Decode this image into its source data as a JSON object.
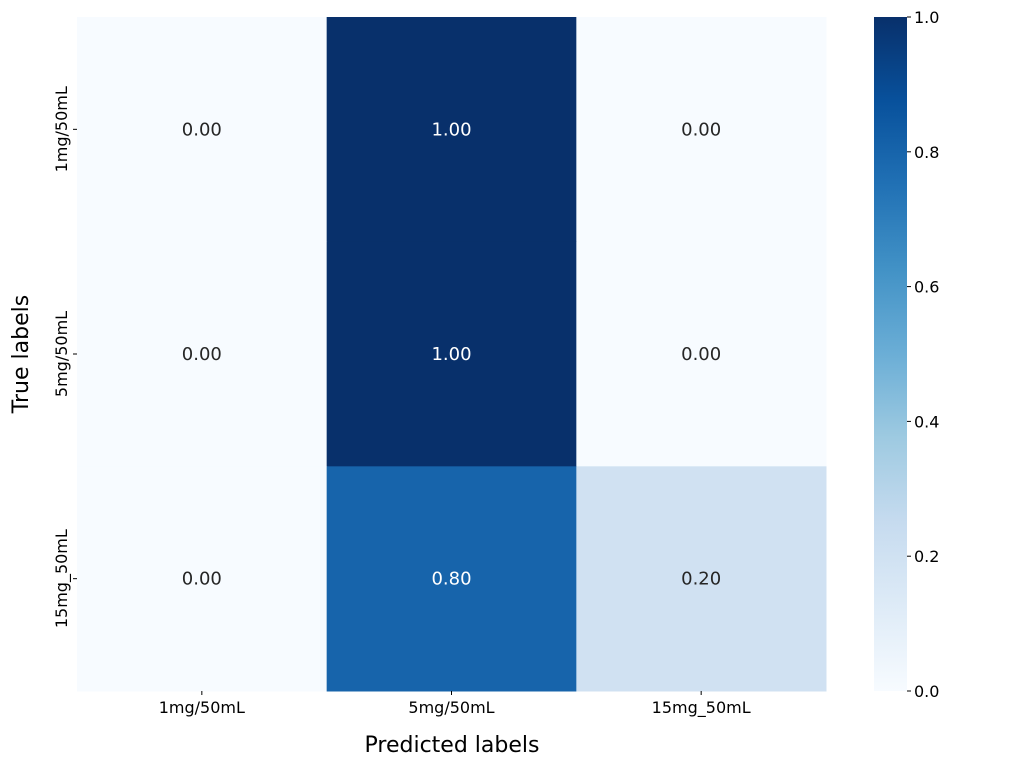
{
  "chart_data": {
    "type": "heatmap",
    "x_categories": [
      "1mg/50mL",
      "5mg/50mL",
      "15mg_50mL"
    ],
    "y_categories": [
      "1mg/50mL",
      "5mg/50mL",
      "15mg_50mL"
    ],
    "values": [
      [
        0.0,
        1.0,
        0.0
      ],
      [
        0.0,
        1.0,
        0.0
      ],
      [
        0.0,
        0.8,
        0.2
      ]
    ],
    "cell_labels": [
      [
        "0.00",
        "1.00",
        "0.00"
      ],
      [
        "0.00",
        "1.00",
        "0.00"
      ],
      [
        "0.00",
        "0.80",
        "0.20"
      ]
    ],
    "xlabel": "Predicted labels",
    "ylabel": "True labels",
    "colorbar": {
      "range": [
        0.0,
        1.0
      ],
      "ticks": [
        "0.0",
        "0.2",
        "0.4",
        "0.6",
        "0.8",
        "1.0"
      ],
      "colormap": "Blues"
    },
    "colors": {
      "low": "#f7fbff",
      "mid": "#6baed6",
      "high": "#08306b",
      "text_dark": "#262626",
      "text_light": "#ffffff"
    }
  }
}
